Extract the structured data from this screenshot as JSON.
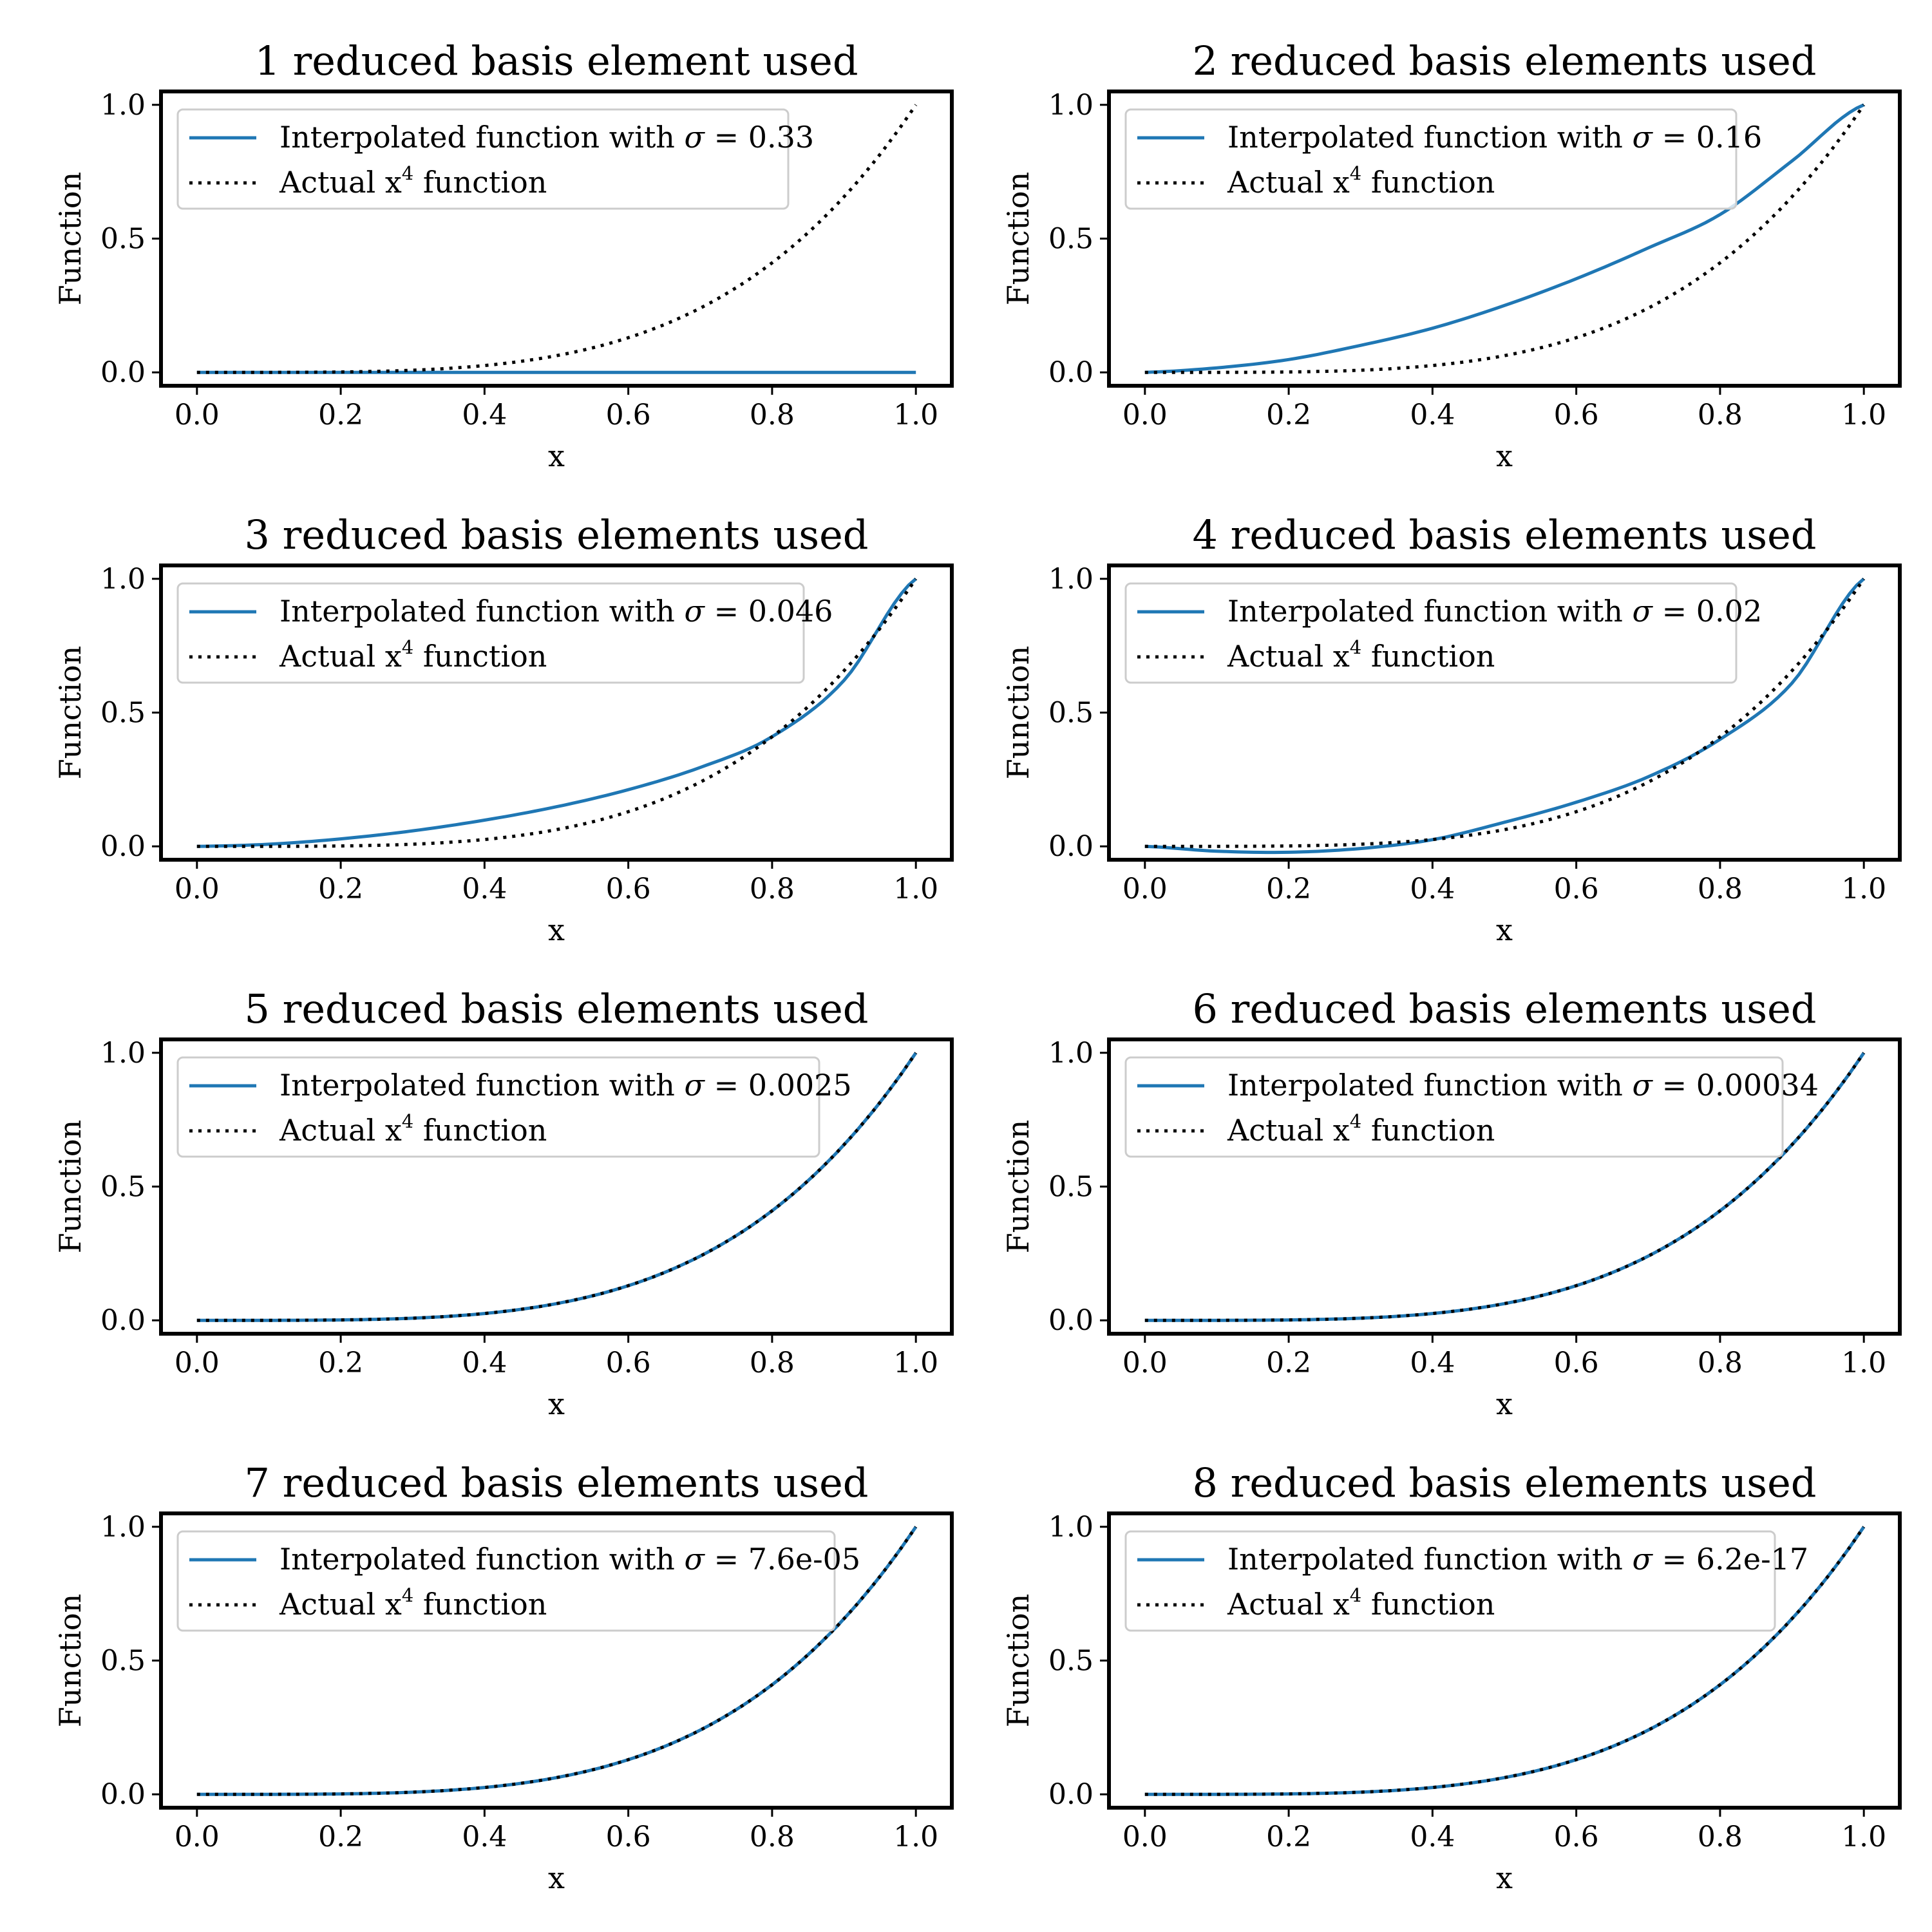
{
  "chart_data": [
    {
      "type": "line",
      "title": "1 reduced basis element used",
      "xlabel": "x",
      "ylabel": "Function",
      "xlim": [
        -0.05,
        1.05
      ],
      "ylim": [
        -0.05,
        1.05
      ],
      "xticks": [
        "0.0",
        "0.2",
        "0.4",
        "0.6",
        "0.8",
        "1.0"
      ],
      "yticks": [
        "0.0",
        "0.5",
        "1.0"
      ],
      "legend_position": "top-left",
      "series": [
        {
          "name_prefix": "Interpolated function with ",
          "symbol": "σ",
          "name_value": " = 0.33",
          "style": "solid",
          "color": "#1f77b4",
          "x": [
            0,
            0.1,
            0.2,
            0.3,
            0.4,
            0.5,
            0.6,
            0.7,
            0.8,
            0.9,
            1.0
          ],
          "y": [
            0,
            0,
            0,
            0,
            0,
            0,
            0,
            0,
            0,
            0,
            0
          ]
        },
        {
          "name_prefix": "Actual x",
          "name_sup": "4",
          "name_suffix": " function",
          "style": "dotted",
          "color": "#000000",
          "function": "x^4"
        }
      ]
    },
    {
      "type": "line",
      "title": "2 reduced basis elements used",
      "xlabel": "x",
      "ylabel": "Function",
      "xlim": [
        -0.05,
        1.05
      ],
      "ylim": [
        -0.05,
        1.05
      ],
      "xticks": [
        "0.0",
        "0.2",
        "0.4",
        "0.6",
        "0.8",
        "1.0"
      ],
      "yticks": [
        "0.0",
        "0.5",
        "1.0"
      ],
      "legend_position": "top-left",
      "series": [
        {
          "name_prefix": "Interpolated function with ",
          "symbol": "σ",
          "name_value": " = 0.16",
          "style": "solid",
          "color": "#1f77b4",
          "x": [
            0,
            0.1,
            0.2,
            0.3,
            0.4,
            0.5,
            0.6,
            0.7,
            0.8,
            0.9,
            1.0
          ],
          "y": [
            0,
            0.017,
            0.048,
            0.101,
            0.165,
            0.25,
            0.35,
            0.465,
            0.59,
            0.79,
            1.0
          ]
        },
        {
          "name_prefix": "Actual x",
          "name_sup": "4",
          "name_suffix": " function",
          "style": "dotted",
          "color": "#000000",
          "function": "x^4"
        }
      ]
    },
    {
      "type": "line",
      "title": "3 reduced basis elements used",
      "xlabel": "x",
      "ylabel": "Function",
      "xlim": [
        -0.05,
        1.05
      ],
      "ylim": [
        -0.05,
        1.05
      ],
      "xticks": [
        "0.0",
        "0.2",
        "0.4",
        "0.6",
        "0.8",
        "1.0"
      ],
      "yticks": [
        "0.0",
        "0.5",
        "1.0"
      ],
      "legend_position": "top-left",
      "series": [
        {
          "name_prefix": "Interpolated function with ",
          "symbol": "σ",
          "name_value": " = 0.046",
          "style": "solid",
          "color": "#1f77b4",
          "x": [
            0,
            0.1,
            0.2,
            0.3,
            0.4,
            0.5,
            0.6,
            0.7,
            0.8,
            0.9,
            1.0
          ],
          "y": [
            0,
            0.008,
            0.028,
            0.058,
            0.098,
            0.148,
            0.212,
            0.295,
            0.41,
            0.62,
            1.0
          ]
        },
        {
          "name_prefix": "Actual x",
          "name_sup": "4",
          "name_suffix": " function",
          "style": "dotted",
          "color": "#000000",
          "function": "x^4"
        }
      ]
    },
    {
      "type": "line",
      "title": "4 reduced basis elements used",
      "xlabel": "x",
      "ylabel": "Function",
      "xlim": [
        -0.05,
        1.05
      ],
      "ylim": [
        -0.05,
        1.05
      ],
      "xticks": [
        "0.0",
        "0.2",
        "0.4",
        "0.6",
        "0.8",
        "1.0"
      ],
      "yticks": [
        "0.0",
        "0.5",
        "1.0"
      ],
      "legend_position": "top-left",
      "series": [
        {
          "name_prefix": "Interpolated function with ",
          "symbol": "σ",
          "name_value": " = 0.02",
          "style": "solid",
          "color": "#1f77b4",
          "x": [
            0,
            0.1,
            0.2,
            0.3,
            0.4,
            0.5,
            0.6,
            0.7,
            0.8,
            0.9,
            1.0
          ],
          "y": [
            0,
            -0.018,
            -0.022,
            -0.008,
            0.025,
            0.09,
            0.165,
            0.26,
            0.4,
            0.61,
            1.0
          ]
        },
        {
          "name_prefix": "Actual x",
          "name_sup": "4",
          "name_suffix": " function",
          "style": "dotted",
          "color": "#000000",
          "function": "x^4"
        }
      ]
    },
    {
      "type": "line",
      "title": "5 reduced basis elements used",
      "xlabel": "x",
      "ylabel": "Function",
      "xlim": [
        -0.05,
        1.05
      ],
      "ylim": [
        -0.05,
        1.05
      ],
      "xticks": [
        "0.0",
        "0.2",
        "0.4",
        "0.6",
        "0.8",
        "1.0"
      ],
      "yticks": [
        "0.0",
        "0.5",
        "1.0"
      ],
      "legend_position": "top-left",
      "series": [
        {
          "name_prefix": "Interpolated function with ",
          "symbol": "σ",
          "name_value": " = 0.0025",
          "style": "solid",
          "color": "#1f77b4",
          "function": "x^4"
        },
        {
          "name_prefix": "Actual x",
          "name_sup": "4",
          "name_suffix": " function",
          "style": "dotted",
          "color": "#000000",
          "function": "x^4"
        }
      ]
    },
    {
      "type": "line",
      "title": "6 reduced basis elements used",
      "xlabel": "x",
      "ylabel": "Function",
      "xlim": [
        -0.05,
        1.05
      ],
      "ylim": [
        -0.05,
        1.05
      ],
      "xticks": [
        "0.0",
        "0.2",
        "0.4",
        "0.6",
        "0.8",
        "1.0"
      ],
      "yticks": [
        "0.0",
        "0.5",
        "1.0"
      ],
      "legend_position": "top-left",
      "series": [
        {
          "name_prefix": "Interpolated function with ",
          "symbol": "σ",
          "name_value": " = 0.00034",
          "style": "solid",
          "color": "#1f77b4",
          "function": "x^4"
        },
        {
          "name_prefix": "Actual x",
          "name_sup": "4",
          "name_suffix": " function",
          "style": "dotted",
          "color": "#000000",
          "function": "x^4"
        }
      ]
    },
    {
      "type": "line",
      "title": "7 reduced basis elements used",
      "xlabel": "x",
      "ylabel": "Function",
      "xlim": [
        -0.05,
        1.05
      ],
      "ylim": [
        -0.05,
        1.05
      ],
      "xticks": [
        "0.0",
        "0.2",
        "0.4",
        "0.6",
        "0.8",
        "1.0"
      ],
      "yticks": [
        "0.0",
        "0.5",
        "1.0"
      ],
      "legend_position": "top-left",
      "series": [
        {
          "name_prefix": "Interpolated function with ",
          "symbol": "σ",
          "name_value": " = 7.6e-05",
          "style": "solid",
          "color": "#1f77b4",
          "function": "x^4"
        },
        {
          "name_prefix": "Actual x",
          "name_sup": "4",
          "name_suffix": " function",
          "style": "dotted",
          "color": "#000000",
          "function": "x^4"
        }
      ]
    },
    {
      "type": "line",
      "title": "8 reduced basis elements used",
      "xlabel": "x",
      "ylabel": "Function",
      "xlim": [
        -0.05,
        1.05
      ],
      "ylim": [
        -0.05,
        1.05
      ],
      "xticks": [
        "0.0",
        "0.2",
        "0.4",
        "0.6",
        "0.8",
        "1.0"
      ],
      "yticks": [
        "0.0",
        "0.5",
        "1.0"
      ],
      "legend_position": "top-left",
      "series": [
        {
          "name_prefix": "Interpolated function with ",
          "symbol": "σ",
          "name_value": " = 6.2e-17",
          "style": "solid",
          "color": "#1f77b4",
          "function": "x^4"
        },
        {
          "name_prefix": "Actual x",
          "name_sup": "4",
          "name_suffix": " function",
          "style": "dotted",
          "color": "#000000",
          "function": "x^4"
        }
      ]
    }
  ]
}
